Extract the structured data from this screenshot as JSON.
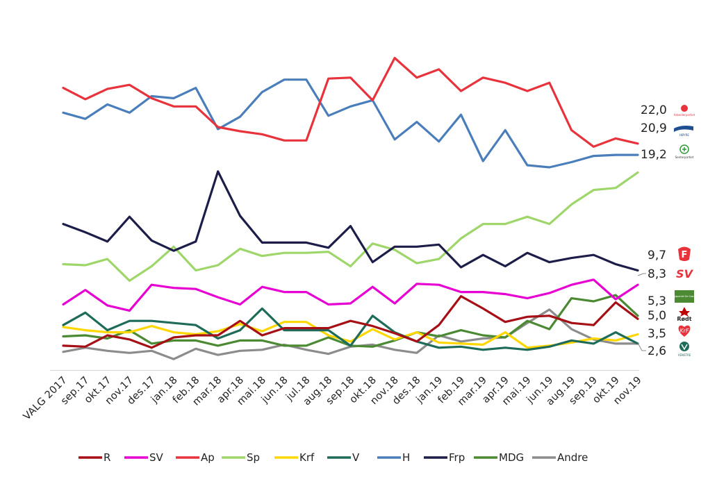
{
  "chart_data": {
    "type": "line",
    "title": "",
    "xlabel": "",
    "ylabel": "",
    "ylim": [
      0,
      32.5
    ],
    "grid": false,
    "legend_position": "bottom",
    "categories": [
      "VALG 2017",
      "sep.17",
      "okt.17",
      "nov.17",
      "des.17",
      "jan.18",
      "feb.18",
      "mar.18",
      "apr.18",
      "mai.18",
      "jun.18",
      "jul.18",
      "aug.18",
      "sep.18",
      "okt.18",
      "nov.18",
      "des.18",
      "jan.19",
      "feb.19",
      "mar.19",
      "apr.19",
      "mai.19",
      "jun.19",
      "aug.19",
      "sep.19",
      "okt.19",
      "nov.19"
    ],
    "series": [
      {
        "name": "R",
        "color": "#a50f15",
        "values": [
          2.4,
          2.3,
          3.4,
          3.0,
          2.2,
          3.2,
          3.4,
          3.4,
          4.8,
          3.4,
          4.1,
          4.1,
          4.1,
          4.8,
          4.3,
          3.6,
          2.8,
          4.4,
          7.2,
          6.0,
          4.7,
          5.2,
          5.3,
          4.6,
          4.4,
          6.6,
          5.0
        ]
      },
      {
        "name": "SV",
        "color": "#e600d2",
        "values": [
          6.4,
          7.8,
          6.3,
          5.8,
          8.3,
          8.0,
          7.9,
          7.1,
          6.4,
          8.1,
          7.6,
          7.6,
          6.4,
          6.5,
          8.1,
          6.5,
          8.4,
          8.3,
          7.6,
          7.6,
          7.4,
          7.0,
          7.5,
          8.3,
          8.8,
          6.9,
          8.3
        ]
      },
      {
        "name": "Ap",
        "color": "#e8323c",
        "values": [
          27.4,
          26.3,
          27.3,
          27.7,
          26.4,
          25.6,
          25.6,
          23.6,
          23.2,
          22.9,
          22.3,
          22.3,
          28.3,
          28.4,
          26.2,
          30.3,
          28.4,
          29.2,
          27.1,
          28.4,
          27.9,
          27.1,
          27.9,
          23.3,
          21.7,
          22.5,
          22.0
        ]
      },
      {
        "name": "Sp",
        "color": "#9fd66a",
        "values": [
          10.3,
          10.2,
          10.8,
          8.7,
          10.1,
          12.0,
          9.7,
          10.2,
          11.8,
          11.1,
          11.4,
          11.4,
          11.5,
          10.1,
          12.3,
          11.7,
          10.4,
          10.8,
          12.8,
          14.2,
          14.2,
          14.9,
          14.2,
          16.1,
          17.5,
          17.7,
          19.2
        ]
      },
      {
        "name": "Krf",
        "color": "#ffd700",
        "values": [
          4.2,
          3.9,
          3.7,
          3.7,
          4.3,
          3.7,
          3.5,
          3.8,
          4.5,
          3.8,
          4.7,
          4.7,
          3.4,
          2.8,
          4.0,
          3.0,
          3.7,
          2.7,
          2.6,
          2.5,
          3.7,
          2.2,
          2.4,
          2.7,
          3.1,
          2.9,
          3.5
        ]
      },
      {
        "name": "V",
        "color": "#1f6b5a",
        "values": [
          4.4,
          5.6,
          3.9,
          4.8,
          4.8,
          4.6,
          4.4,
          3.1,
          3.9,
          6.0,
          3.9,
          3.9,
          3.9,
          2.4,
          5.3,
          3.7,
          2.8,
          2.2,
          2.3,
          2.0,
          2.2,
          2.0,
          2.3,
          2.9,
          2.6,
          3.7,
          2.6
        ]
      },
      {
        "name": "H",
        "color": "#4a7ebb",
        "values": [
          25.0,
          24.4,
          25.8,
          25.0,
          26.6,
          26.4,
          27.4,
          23.4,
          24.6,
          27.0,
          28.2,
          28.2,
          24.7,
          25.6,
          26.2,
          22.4,
          24.1,
          22.2,
          24.8,
          20.3,
          23.3,
          19.9,
          19.7,
          20.2,
          20.8,
          20.9,
          20.9
        ]
      },
      {
        "name": "Frp",
        "color": "#1c1d48",
        "values": [
          14.2,
          13.4,
          12.5,
          14.9,
          12.6,
          11.6,
          12.5,
          19.3,
          15.0,
          12.4,
          12.4,
          12.4,
          11.9,
          14.0,
          10.5,
          12.0,
          12.0,
          12.2,
          10.0,
          11.2,
          10.1,
          11.4,
          10.5,
          10.9,
          11.2,
          10.3,
          9.7
        ]
      },
      {
        "name": "MDG",
        "color": "#4b8a33",
        "values": [
          3.3,
          3.4,
          3.1,
          3.9,
          2.6,
          2.9,
          2.9,
          2.4,
          2.9,
          2.9,
          2.4,
          2.4,
          3.2,
          2.4,
          2.3,
          2.9,
          3.7,
          3.3,
          3.9,
          3.4,
          3.2,
          4.8,
          4.0,
          7.0,
          6.7,
          7.3,
          5.3
        ]
      },
      {
        "name": "Andre",
        "color": "#8c8c8c",
        "values": [
          1.8,
          2.2,
          1.9,
          1.7,
          1.9,
          1.1,
          2.1,
          1.5,
          1.9,
          2.0,
          2.5,
          2.0,
          1.6,
          2.3,
          2.5,
          2.0,
          1.7,
          3.4,
          2.8,
          3.1,
          3.2,
          4.6,
          5.9,
          4.0,
          3.0,
          2.6,
          2.6
        ]
      }
    ],
    "end_labels": [
      {
        "text": "22,0",
        "series": "Ap"
      },
      {
        "text": "20,9",
        "series": "H"
      },
      {
        "text": "19,2",
        "series": "Sp"
      },
      {
        "text": "9,7",
        "series": "Frp"
      },
      {
        "text": "8,3",
        "series": "SV"
      },
      {
        "text": "5,3",
        "series": "MDG"
      },
      {
        "text": "5,0",
        "series": "R"
      },
      {
        "text": "3,5",
        "series": "Krf"
      },
      {
        "text": "2,6",
        "series": "V"
      }
    ],
    "logos": [
      {
        "name": "arbeiderpartiet-logo",
        "text": "Arbeiderpartiet",
        "color": "#e8323c"
      },
      {
        "name": "hoyre-logo",
        "text": "HØYRE",
        "color": "#1d4f91"
      },
      {
        "name": "senterpartiet-logo",
        "text": "Senterpartiet",
        "color": "#2e9b3a"
      },
      {
        "name": "frp-logo",
        "text": "F",
        "color": "#e8323c"
      },
      {
        "name": "sv-logo",
        "text": "SV",
        "color": "#e8323c"
      },
      {
        "name": "mdg-logo",
        "text": "Miljøpartiet De Grønne",
        "color": "#4b8a33"
      },
      {
        "name": "rodt-logo",
        "text": "Rødt",
        "color": "#c00000"
      },
      {
        "name": "krf-logo",
        "text": "KrF",
        "color": "#e8323c"
      },
      {
        "name": "venstre-logo",
        "text": "VENSTRE",
        "color": "#1f6b5a"
      }
    ]
  }
}
